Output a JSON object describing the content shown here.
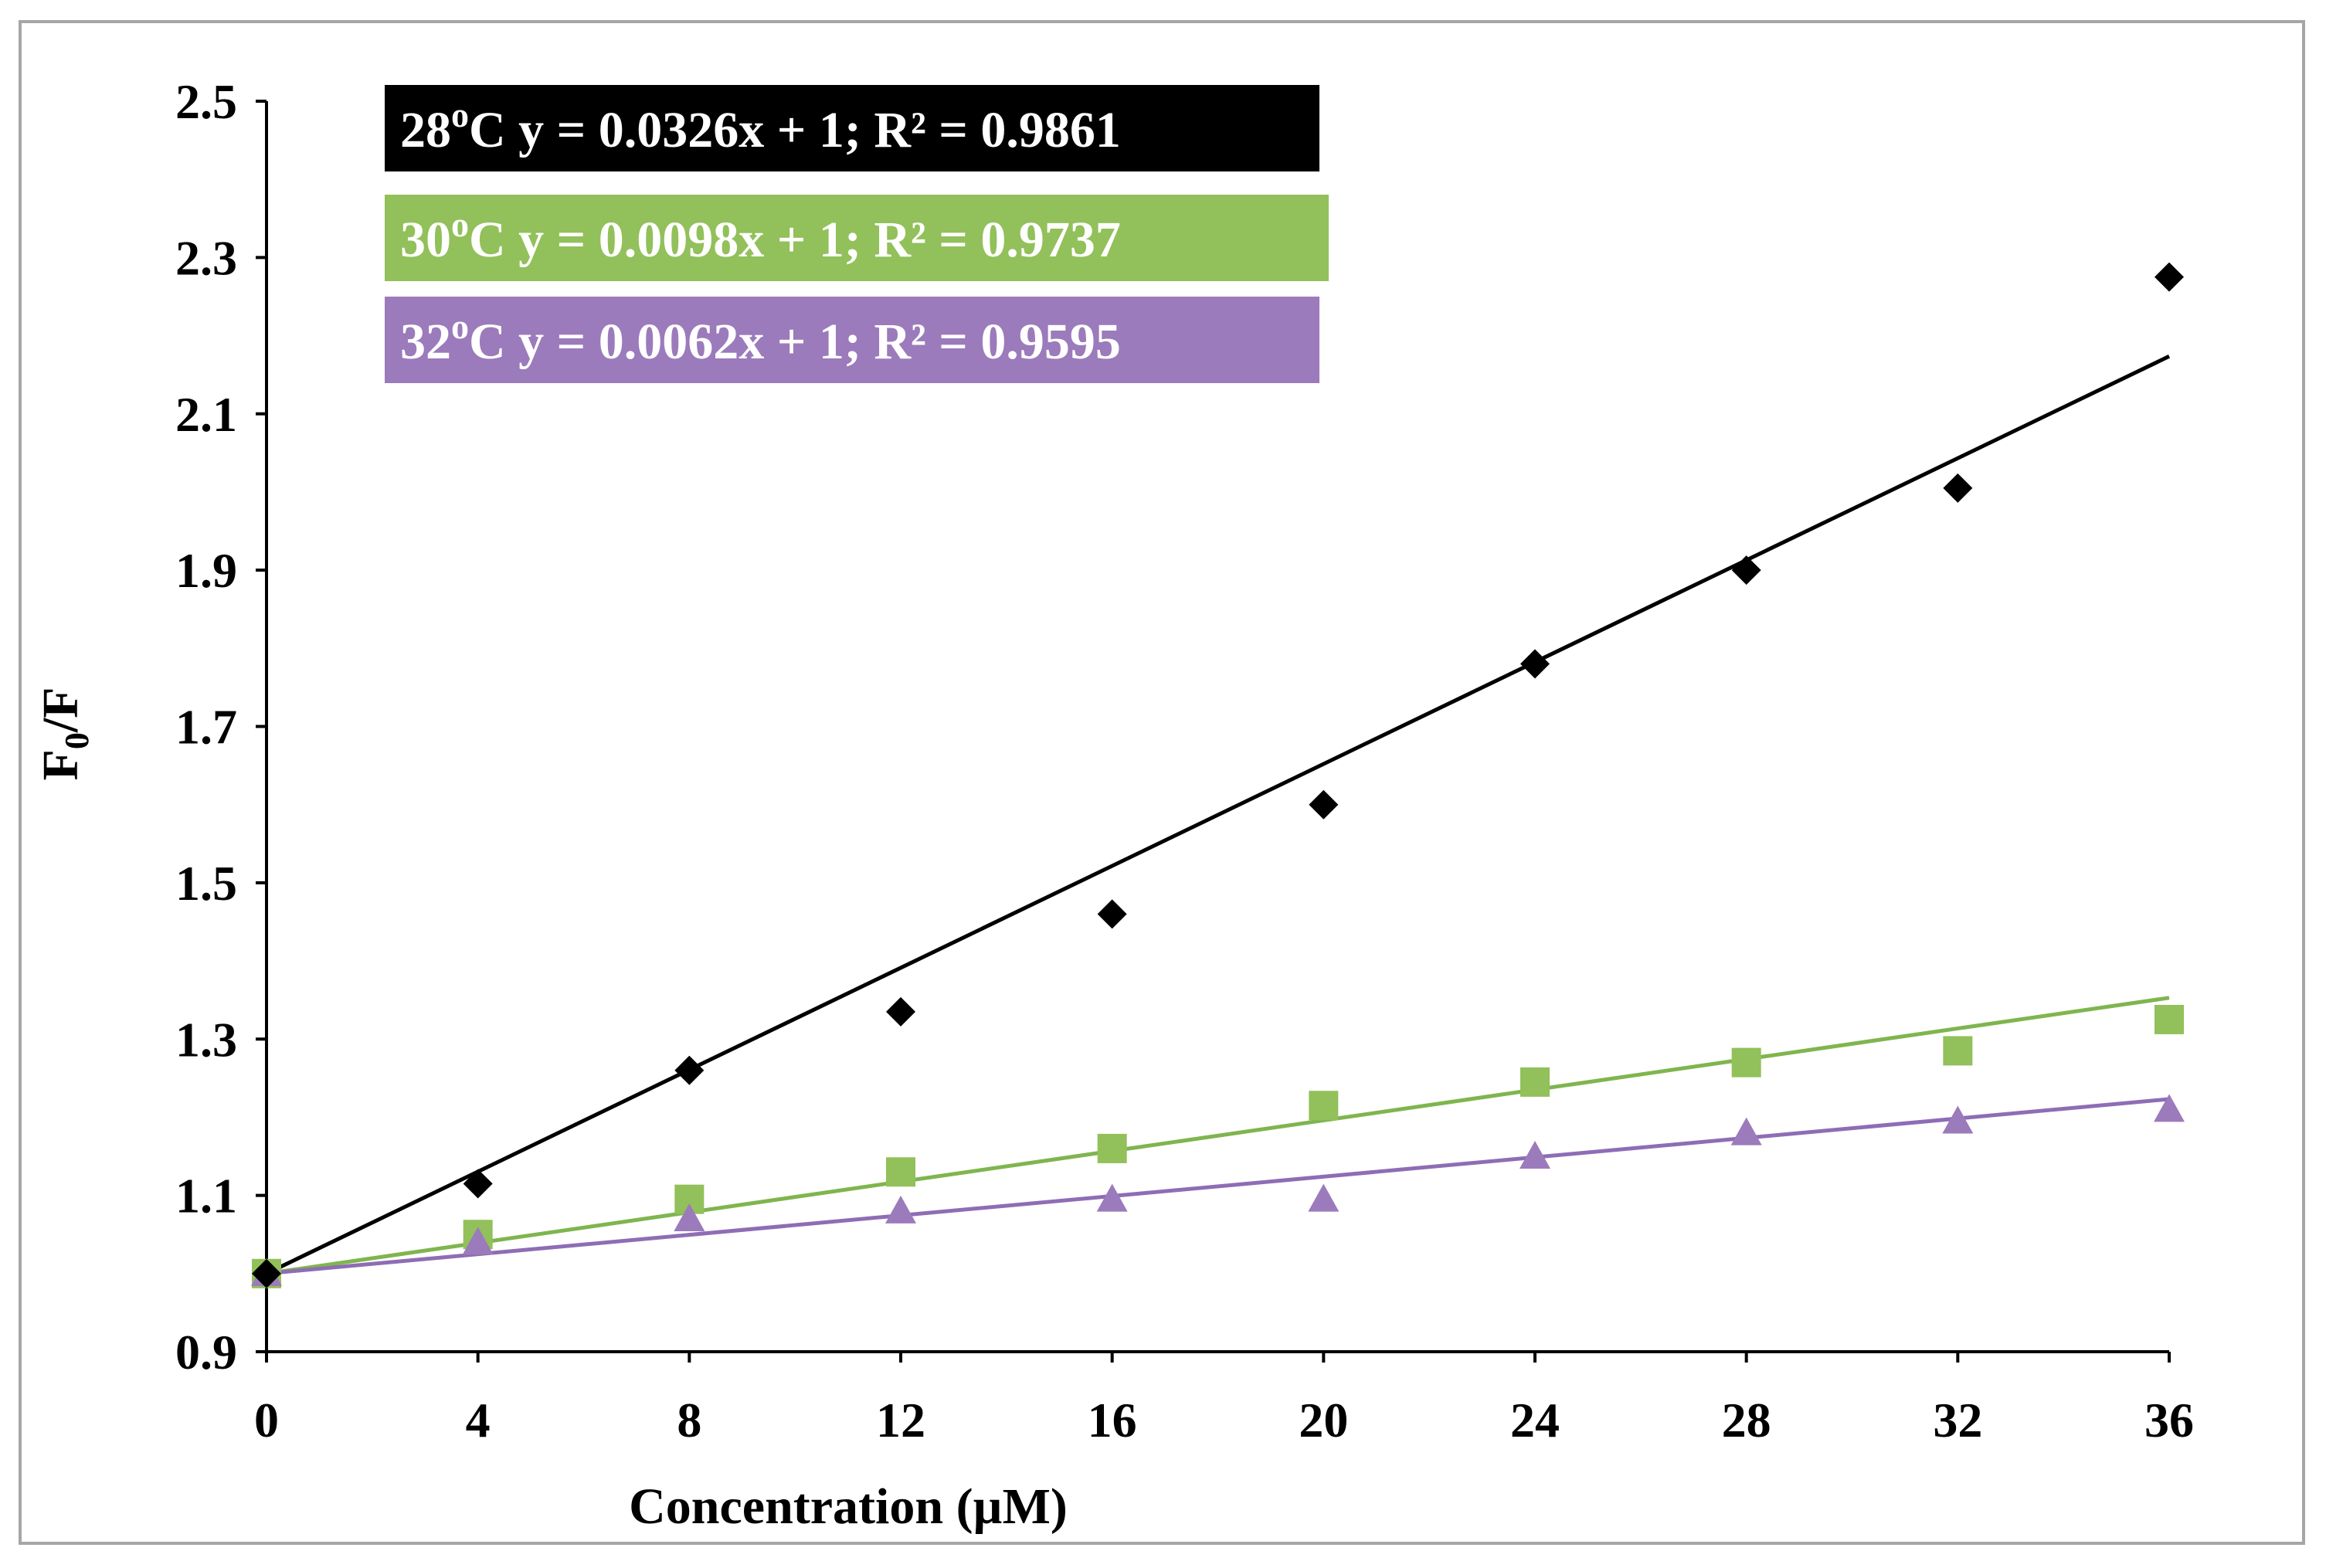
{
  "chart_data": {
    "type": "scatter",
    "title": "",
    "xlabel": "Concentration (µM)",
    "ylabel_main": "F",
    "ylabel_sub": "0",
    "ylabel_suffix": "/F",
    "xlim": [
      0,
      36
    ],
    "ylim": [
      0.9,
      2.5
    ],
    "x_ticks": [
      0,
      4,
      8,
      12,
      16,
      20,
      24,
      28,
      32,
      36
    ],
    "y_ticks": [
      0.9,
      1.1,
      1.3,
      1.5,
      1.7,
      1.9,
      2.1,
      2.3,
      2.5
    ],
    "x_tick_labels": [
      "0",
      "4",
      "8",
      "12",
      "16",
      "20",
      "24",
      "28",
      "32",
      "36"
    ],
    "y_tick_labels": [
      "0.9",
      "1.1",
      "1.3",
      "1.5",
      "1.7",
      "1.9",
      "2.1",
      "2.3",
      "2.5"
    ],
    "grid": false,
    "legend_position": "top-left",
    "x": [
      0,
      4,
      8,
      12,
      16,
      20,
      24,
      28,
      32,
      36
    ],
    "series": [
      {
        "name": "28°C",
        "marker": "diamond",
        "color": "#000000",
        "values": [
          1.0,
          1.115,
          1.26,
          1.335,
          1.46,
          1.6,
          1.78,
          1.9,
          2.005,
          2.275
        ],
        "trend_slope": 0.0326,
        "trend_intercept": 1,
        "legend_prefix": "28",
        "legend_degree": "o",
        "legend_rest": "C y = 0.0326x + 1; R² = 0.9861"
      },
      {
        "name": "30°C",
        "marker": "square",
        "color": "#92c05a",
        "values": [
          1.0,
          1.05,
          1.095,
          1.13,
          1.16,
          1.215,
          1.245,
          1.27,
          1.285,
          1.325
        ],
        "trend_slope": 0.0098,
        "trend_intercept": 1,
        "legend_prefix": "30",
        "legend_degree": "o",
        "legend_rest": "C y = 0.0098x + 1; R² = 0.9737"
      },
      {
        "name": "32°C",
        "marker": "triangle",
        "color": "#9b7bbb",
        "values": [
          1.0,
          1.04,
          1.07,
          1.08,
          1.095,
          1.095,
          1.15,
          1.18,
          1.195,
          1.21
        ],
        "trend_slope": 0.0062,
        "trend_intercept": 1,
        "legend_prefix": "32",
        "legend_degree": "o",
        "legend_rest": "C y = 0.0062x + 1; R² = 0.9595"
      }
    ]
  },
  "colors": {
    "frame_border": "#a6a6a6",
    "axis": "#000000",
    "trend_28": "#000000",
    "trend_30": "#7fb54e",
    "trend_32": "#8e6db5"
  }
}
